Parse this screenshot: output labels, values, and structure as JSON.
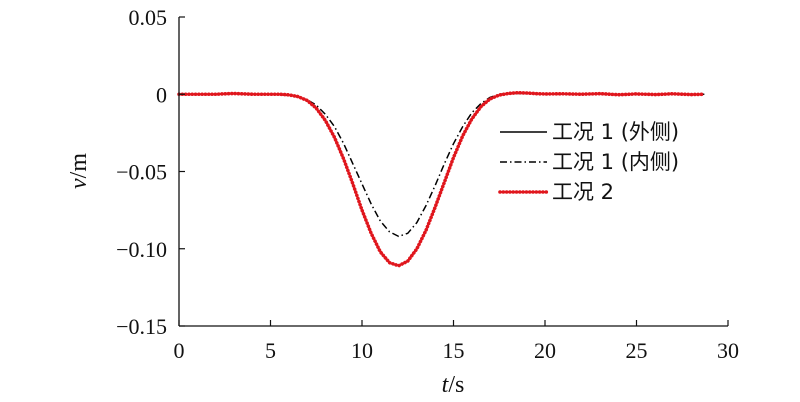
{
  "chart_data": {
    "type": "line",
    "title": "",
    "xlabel": {
      "var": "t",
      "unit": "/s"
    },
    "ylabel": {
      "var": "v",
      "unit": "/m"
    },
    "xlim": [
      0,
      30
    ],
    "ylim": [
      -0.15,
      0.05
    ],
    "xticks": [
      0,
      5,
      10,
      15,
      20,
      25,
      30
    ],
    "xtick_labels": [
      "0",
      "5",
      "10",
      "15",
      "20",
      "25",
      "30"
    ],
    "yticks": [
      0.05,
      0,
      -0.05,
      -0.1,
      -0.15
    ],
    "ytick_labels": [
      "0.05",
      "0",
      "−0.05",
      "−0.10",
      "−0.15"
    ],
    "grid": false,
    "legend_position": "right",
    "series": [
      {
        "name": "工况 1 (外侧)",
        "color": "#000000",
        "style": "solid",
        "x": [
          0,
          1,
          2,
          3,
          4,
          5,
          5.5,
          6,
          6.5,
          7,
          7.5,
          8,
          8.5,
          9,
          9.5,
          10,
          10.5,
          11,
          11.5,
          12,
          12.5,
          13,
          13.5,
          14,
          14.5,
          15,
          15.5,
          16,
          16.5,
          17,
          17.5,
          18,
          18.5,
          19,
          19.5,
          20,
          21,
          22,
          23,
          24,
          25,
          26,
          27,
          28,
          28.7
        ],
        "y": [
          0,
          0,
          0,
          0.0005,
          0,
          0,
          0,
          -0.0004,
          -0.0015,
          -0.004,
          -0.009,
          -0.017,
          -0.028,
          -0.042,
          -0.058,
          -0.075,
          -0.09,
          -0.102,
          -0.109,
          -0.111,
          -0.108,
          -0.1,
          -0.088,
          -0.073,
          -0.057,
          -0.041,
          -0.027,
          -0.016,
          -0.008,
          -0.003,
          -0.0005,
          0.0005,
          0.001,
          0.0008,
          0.0004,
          0.0002,
          0.0003,
          0,
          0.0004,
          -0.0003,
          0.0002,
          -0.0002,
          0.0003,
          -0.0002,
          0
        ]
      },
      {
        "name": "工况 1 (内侧)",
        "color": "#000000",
        "style": "dashdot",
        "x": [
          0,
          1,
          2,
          3,
          4,
          5,
          5.5,
          6,
          6.5,
          7,
          7.5,
          8,
          8.5,
          9,
          9.5,
          10,
          10.5,
          11,
          11.5,
          12,
          12.5,
          13,
          13.5,
          14,
          14.5,
          15,
          15.5,
          16,
          16.5,
          17,
          17.5,
          18,
          18.5,
          19,
          19.5,
          20,
          21,
          22,
          23,
          24,
          25,
          26,
          27,
          28,
          28.7
        ],
        "y": [
          0,
          0,
          0,
          0.0005,
          0,
          0,
          -0.0003,
          -0.0008,
          -0.0018,
          -0.0035,
          -0.007,
          -0.013,
          -0.021,
          -0.032,
          -0.045,
          -0.058,
          -0.071,
          -0.082,
          -0.089,
          -0.092,
          -0.09,
          -0.083,
          -0.072,
          -0.059,
          -0.045,
          -0.032,
          -0.021,
          -0.012,
          -0.006,
          -0.002,
          0,
          0.0005,
          0.0005,
          0.0004,
          0.0003,
          0.0002,
          0.0003,
          0,
          0.0004,
          -0.0003,
          0.0002,
          -0.0002,
          0.0003,
          -0.0002,
          0
        ]
      },
      {
        "name": "工况 2",
        "color": "#e0161d",
        "style": "dotted",
        "x": [
          0,
          1,
          2,
          3,
          4,
          5,
          5.5,
          6,
          6.5,
          7,
          7.5,
          8,
          8.5,
          9,
          9.5,
          10,
          10.5,
          11,
          11.5,
          12,
          12.5,
          13,
          13.5,
          14,
          14.5,
          15,
          15.5,
          16,
          16.5,
          17,
          17.5,
          18,
          18.5,
          19,
          19.5,
          20,
          21,
          22,
          23,
          24,
          25,
          26,
          27,
          28,
          28.7
        ],
        "y": [
          0,
          0,
          0,
          0.0005,
          0,
          0,
          0,
          -0.0004,
          -0.0015,
          -0.004,
          -0.009,
          -0.017,
          -0.028,
          -0.042,
          -0.058,
          -0.075,
          -0.09,
          -0.102,
          -0.109,
          -0.111,
          -0.108,
          -0.1,
          -0.088,
          -0.073,
          -0.057,
          -0.041,
          -0.027,
          -0.016,
          -0.008,
          -0.003,
          -0.0005,
          0.0005,
          0.001,
          0.0008,
          0.0004,
          0.0002,
          0.0003,
          0,
          0.0004,
          -0.0003,
          0.0002,
          -0.0002,
          0.0003,
          -0.0002,
          0
        ]
      }
    ]
  }
}
